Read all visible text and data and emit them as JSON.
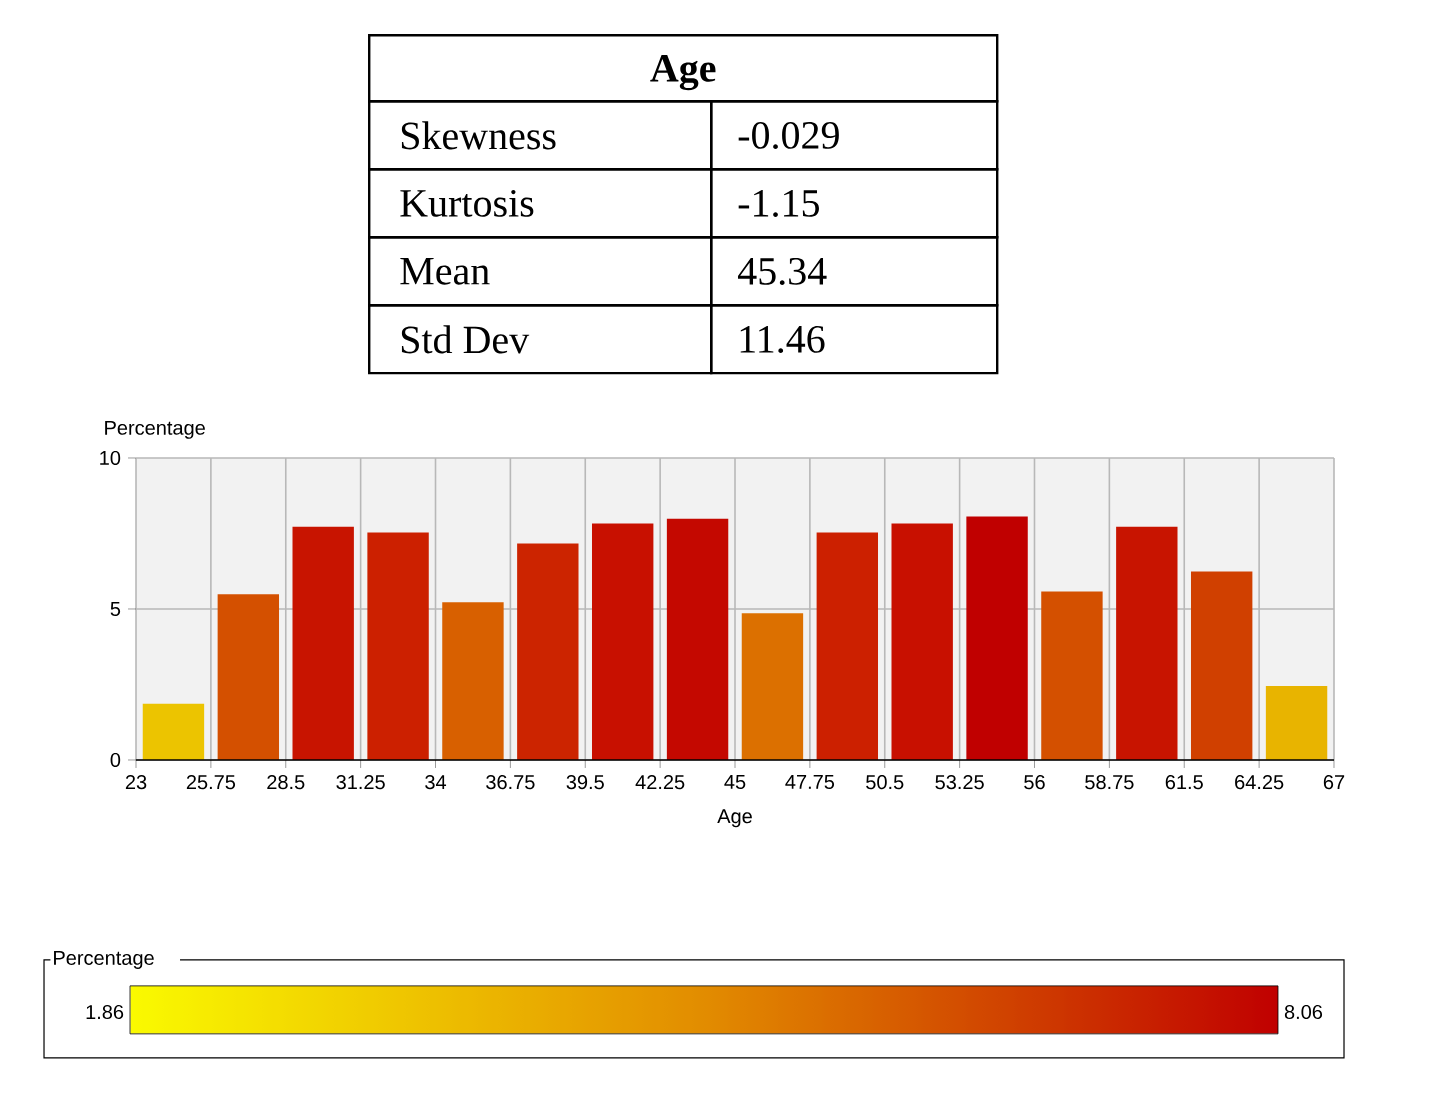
{
  "chart_data": {
    "type": "histogram",
    "xlabel": "Age",
    "ylabel": "Percentage",
    "clabel": "Percentage",
    "bins": [
      23,
      25.75,
      28.5,
      31.25,
      34,
      36.75,
      39.5,
      42.25,
      45,
      47.75,
      50.5,
      53.25,
      56,
      58.75,
      61.5,
      64.25,
      67
    ],
    "values": [
      1.86,
      5.49,
      7.72,
      7.53,
      5.22,
      7.17,
      7.83,
      7.99,
      4.86,
      7.53,
      7.83,
      8.06,
      5.58,
      7.72,
      6.24,
      2.45
    ],
    "colors": [
      "#ecc400",
      "#d45000",
      "#c81400",
      "#cc2000",
      "#d86000",
      "#cc2400",
      "#c81000",
      "#c40800",
      "#dc7000",
      "#cc2000",
      "#c81000",
      "#c00000",
      "#d45000",
      "#c81400",
      "#d04000",
      "#e8b400"
    ],
    "xlim": [
      23,
      67
    ],
    "xticks": [
      23,
      25.75,
      28.5,
      31.25,
      34,
      36.75,
      39.5,
      42.25,
      45,
      47.75,
      50.5,
      53.25,
      56,
      58.75,
      61.5,
      64.25,
      67
    ],
    "ylim": [
      0,
      10
    ],
    "yticks": [
      0,
      5,
      10
    ],
    "grid": true,
    "clim": [
      1.86,
      8.06
    ],
    "cticks": [
      1.86,
      8.06
    ],
    "annotations": [
      "Age",
      "Skewness",
      "-0.029",
      "Kurtosis",
      "-1.15",
      "Mean",
      "45.34",
      "Std Dev",
      "11.46"
    ]
  }
}
